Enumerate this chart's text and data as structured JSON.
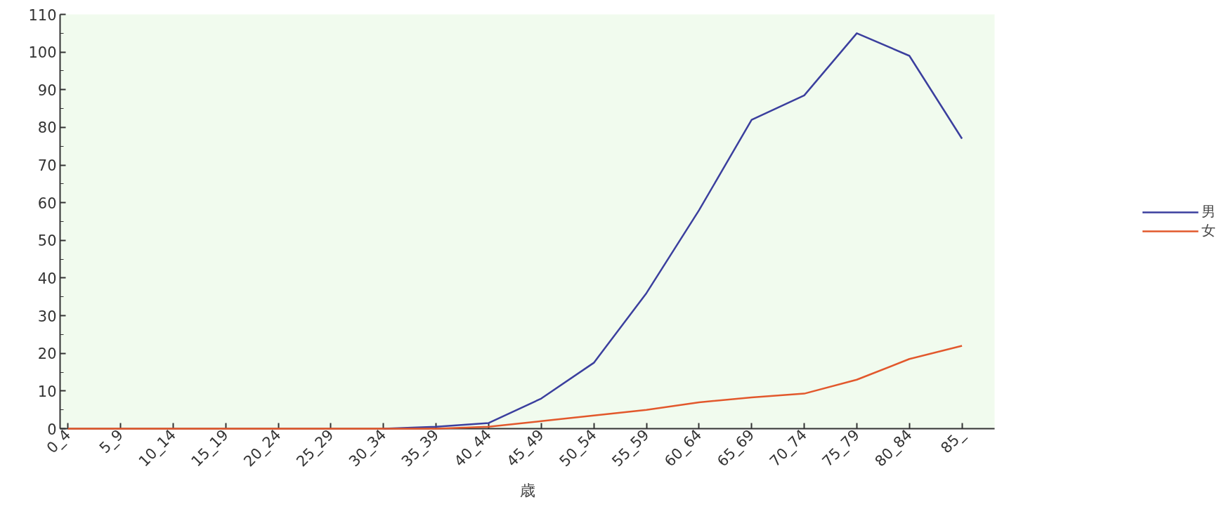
{
  "chart_data": {
    "type": "line",
    "xlabel": "歳",
    "categories": [
      "0_4",
      "5_9",
      "10_14",
      "15_19",
      "20_24",
      "25_29",
      "30_34",
      "35_39",
      "40_44",
      "45_49",
      "50_54",
      "55_59",
      "60_64",
      "65_69",
      "70_74",
      "75_79",
      "80_84",
      "85_"
    ],
    "series": [
      {
        "name": "男",
        "color": "#3b3f9e",
        "values": [
          null,
          null,
          null,
          null,
          null,
          null,
          0,
          0.5,
          1.5,
          8,
          17.5,
          36,
          58,
          82,
          88.5,
          105,
          99,
          77
        ]
      },
      {
        "name": "女",
        "color": "#e2582c",
        "values": [
          0,
          0,
          0,
          0,
          0,
          0,
          0,
          0,
          0.5,
          2,
          3.5,
          5,
          7,
          8.3,
          9.3,
          13,
          18.5,
          22
        ]
      }
    ],
    "ylim": [
      0,
      110
    ],
    "yticks": [
      0,
      10,
      20,
      30,
      40,
      50,
      60,
      70,
      80,
      90,
      100,
      110
    ],
    "grid": false,
    "legend": "right",
    "marker": "none",
    "line_style": "solid"
  }
}
